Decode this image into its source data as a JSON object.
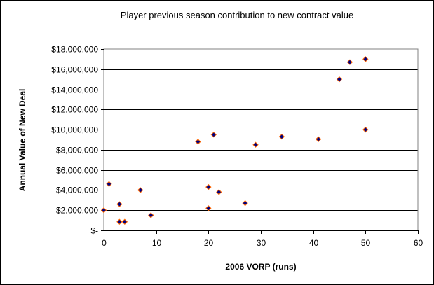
{
  "chart_data": {
    "type": "scatter",
    "title": "Player previous season contribution to new contract value",
    "xlabel": "2006 VORP (runs)",
    "ylabel": "Annual Value of New Deal",
    "xlim": [
      0,
      60
    ],
    "ylim": [
      0,
      18000000
    ],
    "x_ticks": [
      0,
      10,
      20,
      30,
      40,
      50,
      60
    ],
    "x_tick_labels": [
      "0",
      "10",
      "20",
      "30",
      "40",
      "50",
      "60"
    ],
    "y_ticks": [
      0,
      2000000,
      4000000,
      6000000,
      8000000,
      10000000,
      12000000,
      14000000,
      16000000,
      18000000
    ],
    "y_tick_labels": [
      "$-",
      "$2,000,000",
      "$4,000,000",
      "$6,000,000",
      "$8,000,000",
      "$10,000,000",
      "$12,000,000",
      "$14,000,000",
      "$16,000,000",
      "$18,000,000"
    ],
    "grid": "horizontal",
    "legend": "none",
    "marker_fill": "#000080",
    "marker_edge": "#ff6600",
    "points": [
      {
        "x": 0,
        "y": 2000000
      },
      {
        "x": 1,
        "y": 4600000
      },
      {
        "x": 3,
        "y": 2600000
      },
      {
        "x": 3,
        "y": 850000
      },
      {
        "x": 4,
        "y": 850000
      },
      {
        "x": 7,
        "y": 4000000
      },
      {
        "x": 9,
        "y": 1500000
      },
      {
        "x": 18,
        "y": 8800000
      },
      {
        "x": 20,
        "y": 4300000
      },
      {
        "x": 20,
        "y": 2200000
      },
      {
        "x": 21,
        "y": 9500000
      },
      {
        "x": 22,
        "y": 3800000
      },
      {
        "x": 27,
        "y": 2700000
      },
      {
        "x": 29,
        "y": 8500000
      },
      {
        "x": 34,
        "y": 9300000
      },
      {
        "x": 41,
        "y": 9050000
      },
      {
        "x": 45,
        "y": 15000000
      },
      {
        "x": 47,
        "y": 16700000
      },
      {
        "x": 50,
        "y": 17000000
      },
      {
        "x": 50,
        "y": 10000000
      }
    ]
  }
}
